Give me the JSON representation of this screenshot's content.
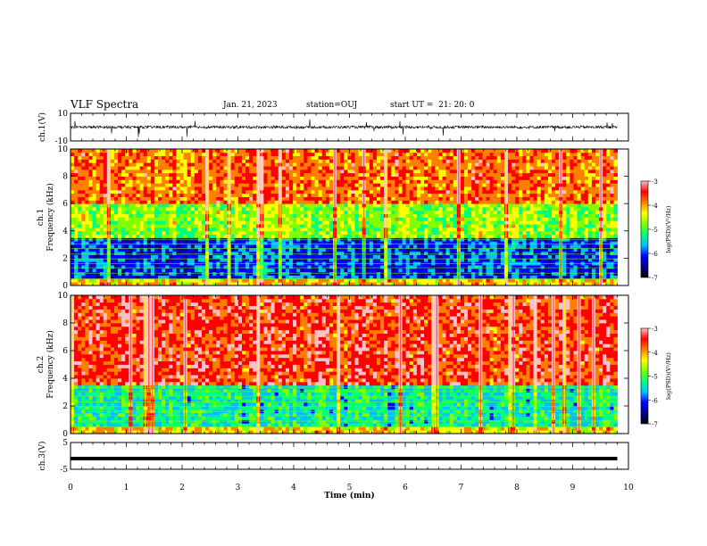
{
  "header": {
    "title": "VLF Spectra",
    "date": "Jan. 21, 2023",
    "station": "station=OUJ",
    "start": "start UT =  21: 20: 0"
  },
  "colors": {
    "spectrum_stops": [
      "#000000",
      "#00008b",
      "#0000ff",
      "#00bfff",
      "#00ff7f",
      "#7fff00",
      "#ffff00",
      "#ff7f00",
      "#ff0000",
      "#ffc0cb"
    ],
    "line": "#000000"
  },
  "chart_data": [
    {
      "type": "line",
      "name": "ch1-waveform",
      "ylabel": "ch.1(V)",
      "ylim": [
        -10,
        10
      ],
      "yticks": [
        "10",
        "-10"
      ],
      "baseline": 0,
      "amplitude_typical": 2,
      "xlim": [
        0,
        10
      ]
    },
    {
      "type": "heatmap",
      "name": "ch1-spectrogram",
      "ylabel_top": "ch.1",
      "ylabel": "Frequency (kHz)",
      "ylim": [
        0,
        10
      ],
      "yticks": [
        "0",
        "2",
        "4",
        "6",
        "8",
        "10"
      ],
      "xlim": [
        0,
        9.8
      ],
      "colorbar": {
        "label": "log(PSD)(V²/Hz)",
        "range": [
          -7,
          -3
        ],
        "ticks": [
          "-3",
          "-4",
          "-5",
          "-6",
          "-7"
        ]
      },
      "band_profile": [
        {
          "f": [
            0,
            0.5
          ],
          "level": -4.5
        },
        {
          "f": [
            0.5,
            3.5
          ],
          "level": -6.3
        },
        {
          "f": [
            3.5,
            6
          ],
          "level": -5.0
        },
        {
          "f": [
            6,
            10
          ],
          "level": -4.1
        }
      ]
    },
    {
      "type": "heatmap",
      "name": "ch2-spectrogram",
      "ylabel_top": "ch.2",
      "ylabel": "Frequency (kHz)",
      "ylim": [
        0,
        10
      ],
      "yticks": [
        "0",
        "2",
        "4",
        "6",
        "8",
        "10"
      ],
      "xlim": [
        0,
        9.8
      ],
      "colorbar": {
        "label": "log(PSD)(V²/Hz)",
        "range": [
          -7,
          -3
        ],
        "ticks": [
          "-3",
          "-4",
          "-5",
          "-6",
          "-7"
        ]
      },
      "band_profile": [
        {
          "f": [
            0,
            0.4
          ],
          "level": -4.5
        },
        {
          "f": [
            0.4,
            3.5
          ],
          "level": -5.6
        },
        {
          "f": [
            3.5,
            10
          ],
          "level": -3.8
        }
      ]
    },
    {
      "type": "line",
      "name": "ch3-waveform",
      "ylabel": "ch.3(V)",
      "ylim": [
        -5,
        5
      ],
      "yticks": [
        "5",
        "-5"
      ],
      "value": -1,
      "xlim": [
        0,
        9.8
      ]
    }
  ],
  "xaxis": {
    "label": "Time (min)",
    "ticks": [
      "0",
      "1",
      "2",
      "3",
      "4",
      "5",
      "6",
      "7",
      "8",
      "9",
      "10"
    ],
    "xlim": [
      0,
      10
    ]
  }
}
